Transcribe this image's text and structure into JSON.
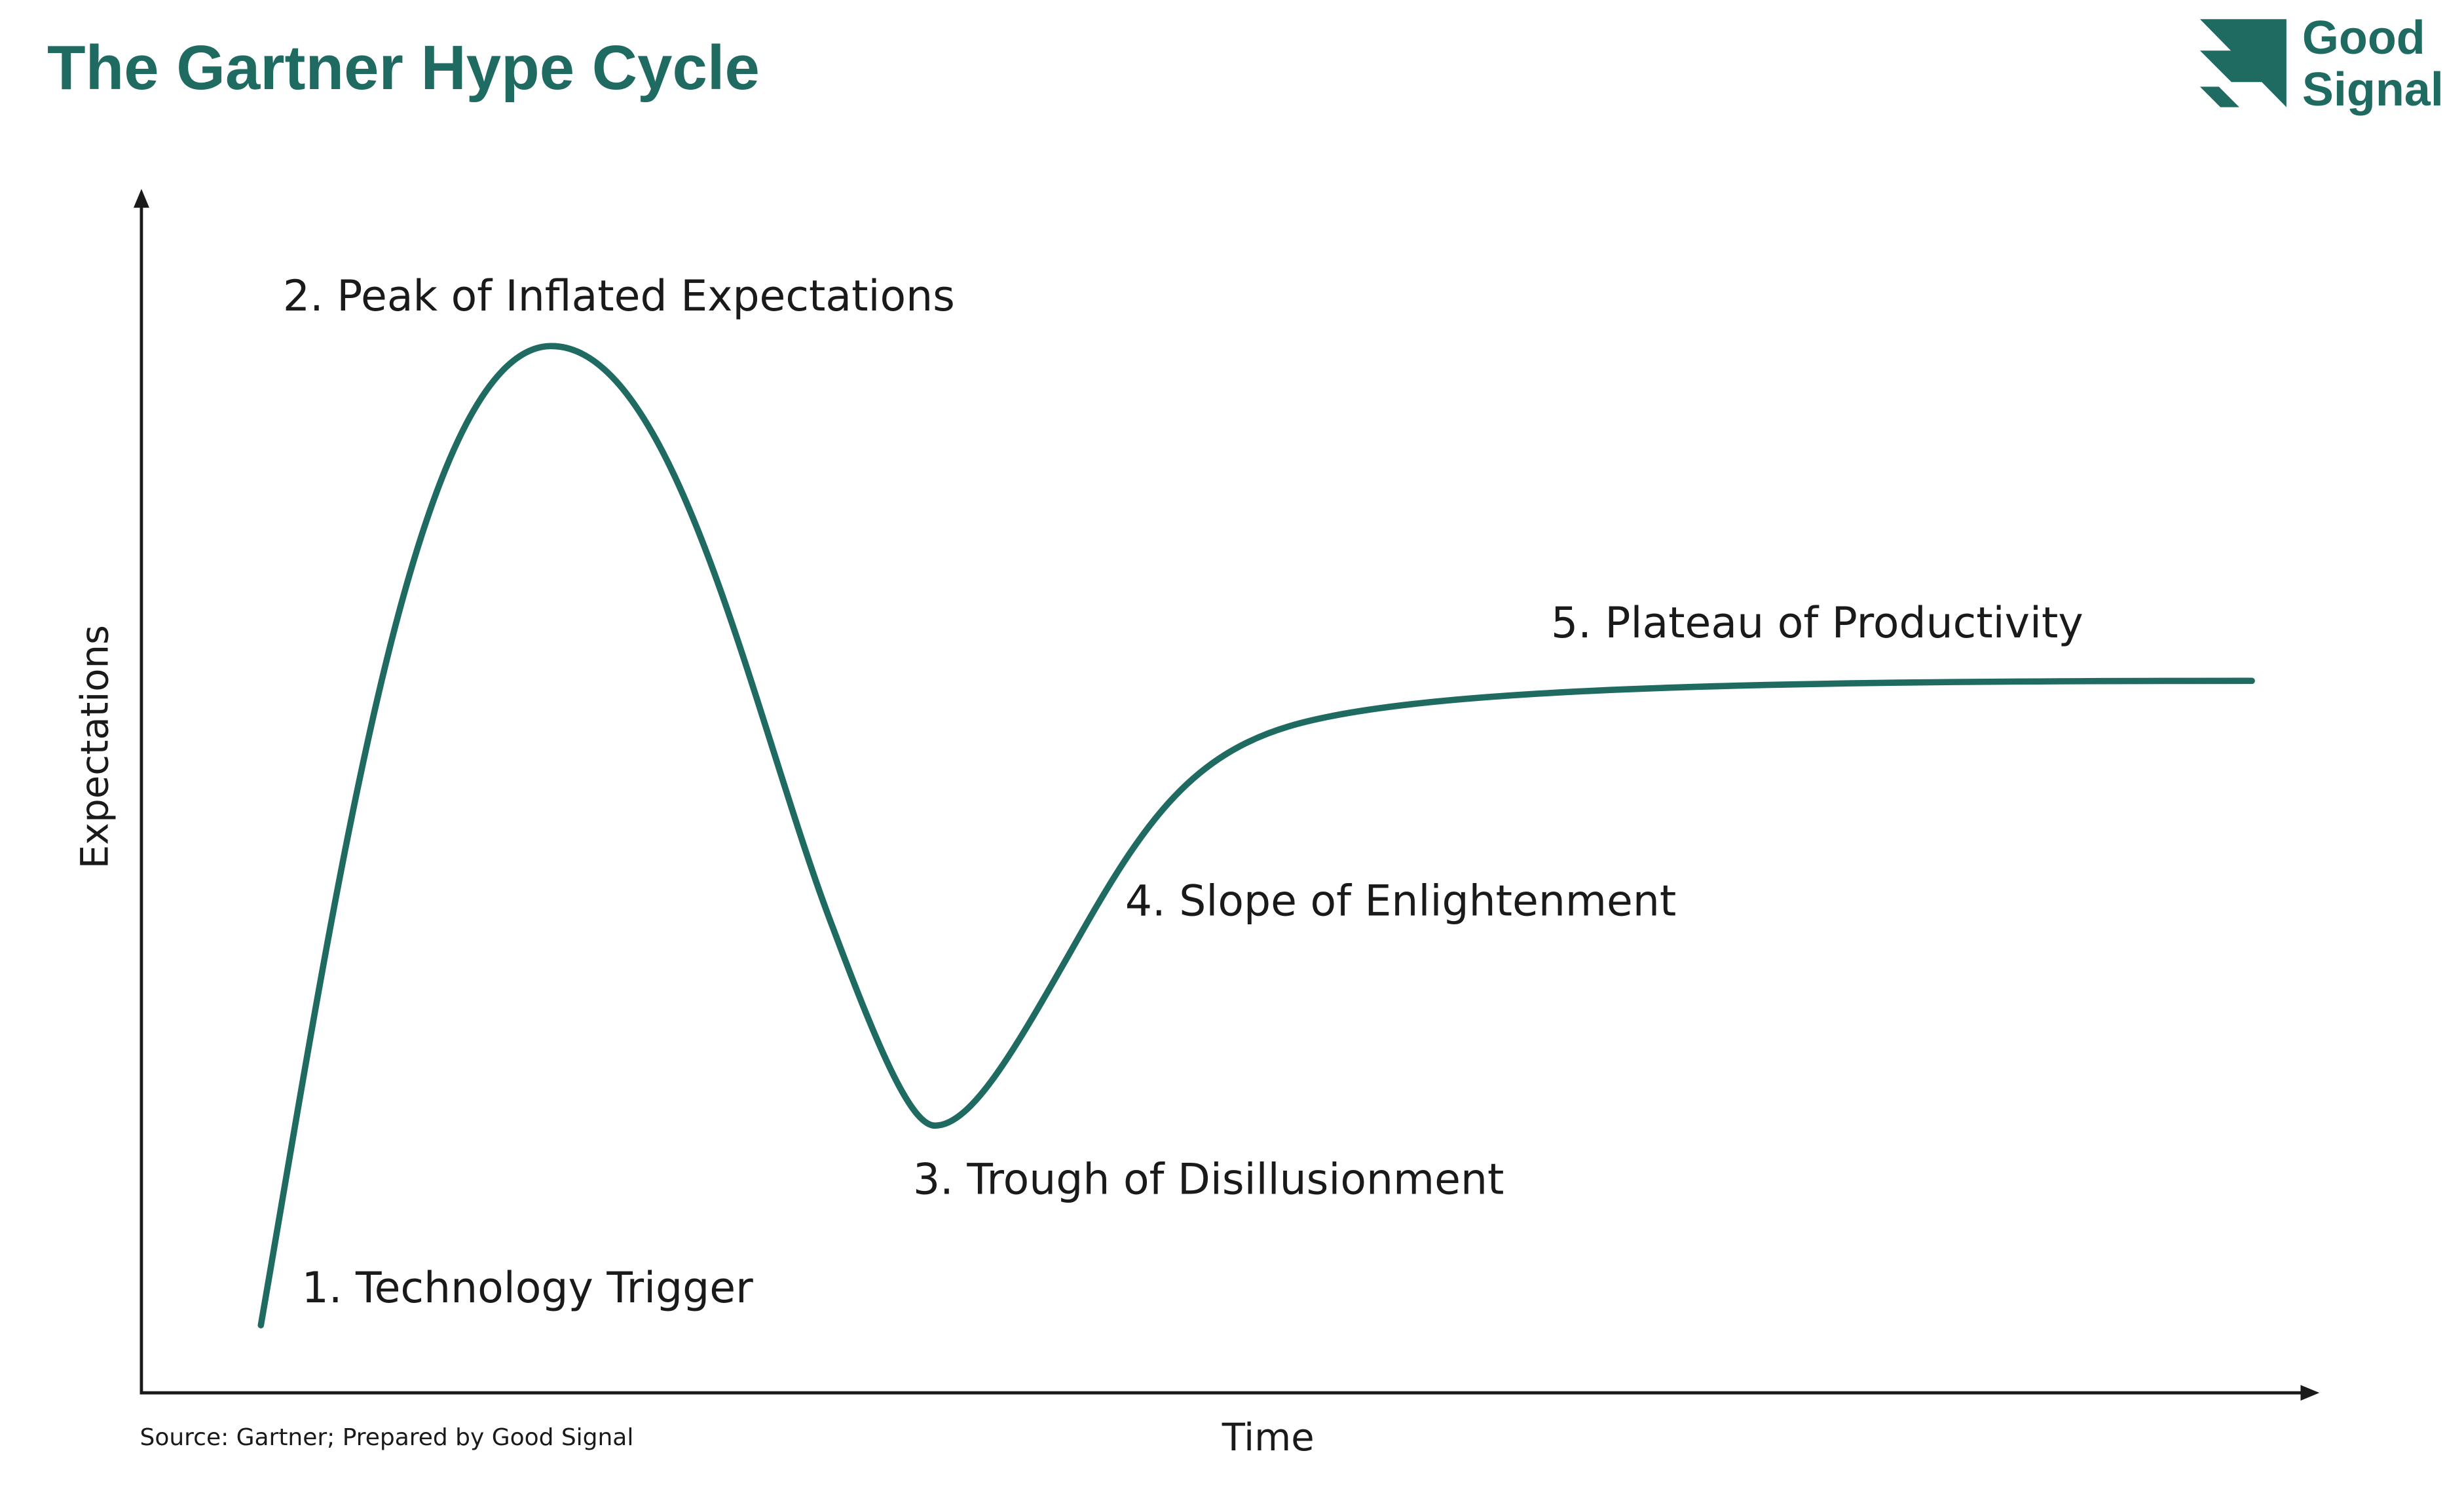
{
  "header": {
    "title": "The Gartner Hype Cycle",
    "logo": {
      "line1": "Good",
      "line2": "Signal"
    }
  },
  "axes": {
    "y_label": "Expectations",
    "x_label": "Time"
  },
  "stages": [
    "1. Technology Trigger",
    "2. Peak of Inflated Expectations",
    "3. Trough of Disillusionment",
    "4. Slope of Enlightenment",
    "5. Plateau of Productivity"
  ],
  "footer": {
    "source": "Source: Gartner; Prepared by Good Signal"
  }
}
